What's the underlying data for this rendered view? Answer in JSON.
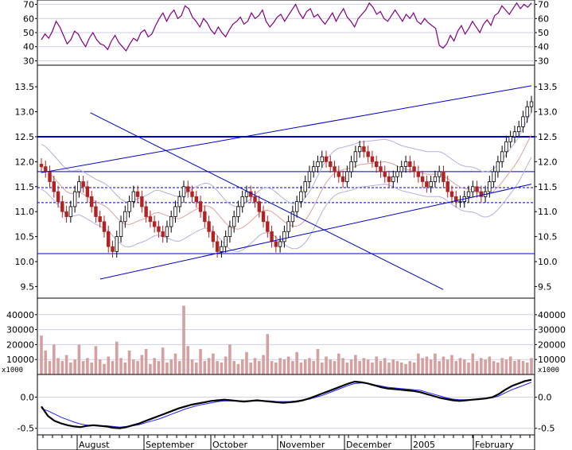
{
  "colors": {
    "background": "#ffffff",
    "panel_border": "#000000",
    "grid": "#cfcfe4",
    "rsi_line": "#800080",
    "trendline": "#0000cc",
    "support_line": "#0000cc",
    "candle_up": "#000000",
    "candle_down": "#b22222",
    "bollinger": "#b0b0e0",
    "ma_red": "#e0a0a0",
    "volume_bar": "#d4a0a0",
    "macd_line": "#000000",
    "signal_line": "#2020ff"
  },
  "chart_data": {
    "type": "stock-chart",
    "months": [
      "August",
      "September",
      "October",
      "November",
      "December",
      "2005",
      "February"
    ],
    "rsi": {
      "ticks": [
        "70",
        "60",
        "50",
        "40",
        "30"
      ],
      "tick_values": [
        70,
        60,
        50,
        40,
        30
      ],
      "range": [
        28,
        72
      ],
      "values": [
        45,
        49,
        46,
        51,
        58,
        54,
        48,
        42,
        45,
        51,
        49,
        44,
        40,
        46,
        50,
        45,
        42,
        41,
        38,
        44,
        48,
        43,
        40,
        37,
        42,
        46,
        44,
        50,
        52,
        47,
        49,
        55,
        60,
        64,
        58,
        63,
        66,
        60,
        62,
        69,
        67,
        61,
        58,
        54,
        60,
        57,
        52,
        49,
        54,
        50,
        47,
        52,
        56,
        58,
        61,
        56,
        58,
        64,
        60,
        62,
        66,
        58,
        54,
        57,
        61,
        63,
        58,
        62,
        66,
        70,
        64,
        60,
        65,
        67,
        61,
        63,
        59,
        56,
        60,
        64,
        58,
        63,
        67,
        61,
        58,
        54,
        60,
        63,
        66,
        71,
        68,
        63,
        65,
        60,
        58,
        62,
        66,
        62,
        58,
        63,
        60,
        64,
        58,
        56,
        60,
        57,
        55,
        53,
        41,
        39,
        42,
        48,
        44,
        51,
        55,
        49,
        53,
        58,
        54,
        50,
        56,
        59,
        55,
        62,
        64,
        69,
        66,
        63,
        67,
        71,
        67,
        70,
        68,
        71
      ]
    },
    "price": {
      "ticks": [
        "13.5",
        "13.0",
        "12.5",
        "12.0",
        "11.5",
        "11.0",
        "10.5",
        "10.0",
        "9.5"
      ],
      "tick_values": [
        13.5,
        13.0,
        12.5,
        12.0,
        11.5,
        11.0,
        10.5,
        10.0,
        9.5
      ],
      "range": [
        9.3,
        13.9
      ],
      "horizontal_lines": [
        {
          "value": 12.5,
          "style": "solid-bold"
        },
        {
          "value": 11.8,
          "style": "solid"
        },
        {
          "value": 11.48,
          "style": "dashed"
        },
        {
          "value": 11.18,
          "style": "dashed"
        },
        {
          "value": 10.16,
          "style": "solid"
        }
      ],
      "closes": [
        11.9,
        11.8,
        11.6,
        11.4,
        11.2,
        11.0,
        10.9,
        11.1,
        11.4,
        11.6,
        11.5,
        11.3,
        11.1,
        10.9,
        10.8,
        10.6,
        10.3,
        10.2,
        10.5,
        10.8,
        11.0,
        11.2,
        11.4,
        11.3,
        11.1,
        10.9,
        10.8,
        10.7,
        10.6,
        10.5,
        10.7,
        10.9,
        11.1,
        11.3,
        11.5,
        11.4,
        11.3,
        11.2,
        11.0,
        10.8,
        10.6,
        10.4,
        10.2,
        10.3,
        10.5,
        10.7,
        10.9,
        11.1,
        11.3,
        11.4,
        11.3,
        11.2,
        11.0,
        10.8,
        10.6,
        10.4,
        10.3,
        10.4,
        10.6,
        10.8,
        11.0,
        11.2,
        11.4,
        11.6,
        11.8,
        11.9,
        12.0,
        12.1,
        12.0,
        11.9,
        11.8,
        11.7,
        11.6,
        11.8,
        12.0,
        12.2,
        12.3,
        12.2,
        12.1,
        12.0,
        11.9,
        11.8,
        11.7,
        11.6,
        11.7,
        11.8,
        11.9,
        12.0,
        11.9,
        11.8,
        11.7,
        11.6,
        11.5,
        11.6,
        11.7,
        11.8,
        11.6,
        11.4,
        11.3,
        11.2,
        11.2,
        11.3,
        11.4,
        11.5,
        11.4,
        11.3,
        11.4,
        11.6,
        11.8,
        12.0,
        12.2,
        12.4,
        12.5,
        12.6,
        12.7,
        12.9,
        13.1,
        13.2
      ],
      "trendlines": [
        {
          "from": [
            0.1,
            12.98
          ],
          "to": [
            0.82,
            9.44
          ]
        },
        {
          "from": [
            0.0,
            11.78
          ],
          "to": [
            1.0,
            13.52
          ]
        },
        {
          "from": [
            0.12,
            9.65
          ],
          "to": [
            1.0,
            11.55
          ]
        }
      ]
    },
    "volume": {
      "ticks": [
        "40000",
        "30000",
        "20000",
        "10000"
      ],
      "tick_values": [
        40000,
        30000,
        20000,
        10000
      ],
      "unit_label": "x1000",
      "range": [
        0,
        50000
      ],
      "values": [
        26000,
        16000,
        9000,
        20000,
        11000,
        9000,
        13000,
        8000,
        10000,
        20000,
        9000,
        11000,
        8000,
        19000,
        10000,
        7000,
        12000,
        9000,
        22000,
        11000,
        8000,
        16000,
        10000,
        9000,
        13000,
        17000,
        7000,
        11000,
        9000,
        18000,
        8000,
        10000,
        14000,
        9000,
        46000,
        19000,
        10000,
        8000,
        17000,
        9000,
        11000,
        14000,
        9000,
        8000,
        12000,
        20000,
        9000,
        7000,
        10000,
        15000,
        8000,
        11000,
        9000,
        13000,
        27000,
        9000,
        8000,
        11000,
        10000,
        12000,
        9000,
        15000,
        8000,
        10000,
        11000,
        9000,
        17000,
        8000,
        12000,
        10000,
        9000,
        14000,
        11000,
        8000,
        10000,
        13000,
        9000,
        11000,
        10000,
        8000,
        12000,
        9000,
        11000,
        8000,
        10000,
        9000,
        8000,
        7000,
        9000,
        8000,
        14000,
        11000,
        12000,
        10000,
        14000,
        9000,
        12000,
        10000,
        13000,
        9000,
        11000,
        10000,
        8000,
        14000,
        9000,
        11000,
        10000,
        12000,
        9000,
        8000,
        11000,
        10000,
        12000,
        9000,
        10000,
        9000,
        8000,
        11000
      ]
    },
    "macd": {
      "ticks": [
        "0.0",
        "-0.5"
      ],
      "tick_values": [
        0.0,
        -0.5
      ],
      "range": [
        -0.58,
        0.34
      ],
      "macd_values": [
        -0.15,
        -0.3,
        -0.38,
        -0.42,
        -0.45,
        -0.47,
        -0.48,
        -0.46,
        -0.45,
        -0.46,
        -0.47,
        -0.49,
        -0.5,
        -0.48,
        -0.45,
        -0.42,
        -0.38,
        -0.34,
        -0.3,
        -0.26,
        -0.22,
        -0.18,
        -0.15,
        -0.12,
        -0.1,
        -0.08,
        -0.06,
        -0.05,
        -0.04,
        -0.05,
        -0.06,
        -0.07,
        -0.06,
        -0.05,
        -0.06,
        -0.07,
        -0.08,
        -0.09,
        -0.08,
        -0.07,
        -0.05,
        -0.02,
        0.02,
        0.06,
        0.1,
        0.14,
        0.18,
        0.22,
        0.25,
        0.24,
        0.22,
        0.19,
        0.16,
        0.14,
        0.13,
        0.12,
        0.11,
        0.1,
        0.08,
        0.05,
        0.02,
        -0.01,
        -0.03,
        -0.05,
        -0.06,
        -0.05,
        -0.04,
        -0.03,
        -0.02,
        0.0,
        0.05,
        0.12,
        0.18,
        0.22,
        0.26,
        0.28
      ],
      "signal_values": [
        -0.18,
        -0.22,
        -0.27,
        -0.32,
        -0.36,
        -0.4,
        -0.43,
        -0.45,
        -0.46,
        -0.46,
        -0.46,
        -0.47,
        -0.48,
        -0.47,
        -0.46,
        -0.44,
        -0.41,
        -0.38,
        -0.35,
        -0.31,
        -0.27,
        -0.23,
        -0.19,
        -0.16,
        -0.13,
        -0.11,
        -0.09,
        -0.07,
        -0.06,
        -0.06,
        -0.06,
        -0.06,
        -0.06,
        -0.06,
        -0.06,
        -0.06,
        -0.07,
        -0.07,
        -0.07,
        -0.06,
        -0.05,
        -0.03,
        0.0,
        0.03,
        0.07,
        0.11,
        0.15,
        0.19,
        0.22,
        0.23,
        0.22,
        0.2,
        0.18,
        0.16,
        0.15,
        0.14,
        0.13,
        0.12,
        0.11,
        0.08,
        0.05,
        0.02,
        -0.01,
        -0.03,
        -0.04,
        -0.04,
        -0.04,
        -0.03,
        -0.02,
        -0.01,
        0.02,
        0.07,
        0.12,
        0.16,
        0.2,
        0.24
      ]
    }
  }
}
